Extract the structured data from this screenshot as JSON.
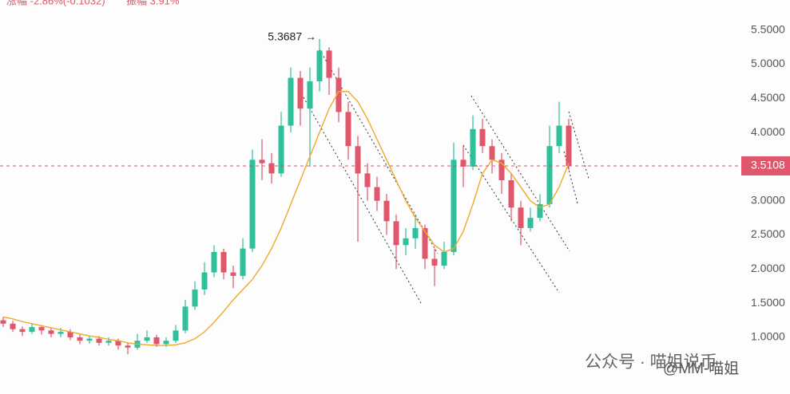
{
  "chart_data": {
    "type": "candlestick",
    "header": {
      "change": "涨幅 -2.86%(-0.1032)",
      "amplitude": "振幅 3.91%"
    },
    "open": [
      1.25,
      1.2,
      1.12,
      1.08,
      1.15,
      1.1,
      1.05,
      1.08,
      1.0,
      0.95,
      0.98,
      0.92,
      0.95,
      0.88,
      0.85,
      0.95,
      1.0,
      0.9,
      0.95,
      1.1,
      1.45,
      1.7,
      1.95,
      2.25,
      1.95,
      1.9,
      2.3,
      3.6,
      3.55,
      3.4,
      4.1,
      4.8,
      4.35,
      4.75,
      5.2,
      4.8,
      4.3,
      3.8,
      3.4,
      3.2,
      3.0,
      2.7,
      2.35,
      2.45,
      2.6,
      2.15,
      2.05,
      2.25,
      3.6,
      3.5,
      4.05,
      3.8,
      3.6,
      3.3,
      2.9,
      2.6,
      2.75,
      2.95,
      3.8,
      4.1
    ],
    "high": [
      1.3,
      1.24,
      1.16,
      1.2,
      1.18,
      1.14,
      1.14,
      1.12,
      1.04,
      1.03,
      1.02,
      1.0,
      0.98,
      0.92,
      1.05,
      1.1,
      1.04,
      1.0,
      1.18,
      1.55,
      1.82,
      2.1,
      2.35,
      2.3,
      2.05,
      2.45,
      3.75,
      3.9,
      3.7,
      4.3,
      4.95,
      4.9,
      4.95,
      5.3687,
      5.25,
      4.95,
      4.45,
      3.95,
      3.55,
      3.35,
      3.1,
      2.8,
      2.6,
      2.8,
      2.65,
      2.3,
      2.4,
      3.85,
      3.8,
      4.25,
      4.2,
      3.9,
      3.7,
      3.4,
      3.0,
      2.9,
      3.1,
      4.1,
      4.45,
      4.2
    ],
    "low": [
      1.15,
      1.08,
      1.02,
      1.05,
      1.04,
      1.0,
      1.0,
      0.96,
      0.9,
      0.91,
      0.88,
      0.88,
      0.82,
      0.75,
      0.82,
      0.92,
      0.86,
      0.86,
      0.92,
      1.06,
      1.4,
      1.62,
      1.88,
      1.85,
      1.72,
      1.85,
      2.25,
      3.3,
      3.25,
      3.35,
      4.0,
      4.1,
      3.5,
      4.6,
      4.55,
      4.15,
      3.6,
      2.4,
      3.0,
      2.85,
      2.5,
      2.0,
      2.2,
      2.3,
      2.0,
      1.75,
      2.0,
      2.2,
      3.2,
      3.45,
      3.7,
      3.4,
      3.1,
      2.7,
      2.35,
      2.55,
      2.7,
      2.9,
      3.7,
      3.45
    ],
    "close": [
      1.2,
      1.12,
      1.08,
      1.15,
      1.1,
      1.05,
      1.08,
      1.0,
      0.95,
      0.98,
      0.92,
      0.95,
      0.88,
      0.85,
      0.95,
      1.0,
      0.9,
      0.95,
      1.1,
      1.45,
      1.7,
      1.95,
      2.25,
      1.95,
      1.9,
      2.3,
      3.6,
      3.55,
      3.4,
      4.1,
      4.8,
      4.35,
      4.75,
      5.2,
      4.8,
      4.3,
      3.8,
      3.4,
      3.2,
      3.0,
      2.7,
      2.35,
      2.45,
      2.6,
      2.15,
      2.05,
      2.25,
      3.6,
      3.5,
      4.05,
      3.8,
      3.6,
      3.3,
      2.9,
      2.6,
      2.75,
      2.95,
      3.8,
      4.1,
      3.51
    ],
    "ma": [
      1.3,
      1.27,
      1.23,
      1.2,
      1.17,
      1.14,
      1.11,
      1.08,
      1.05,
      1.02,
      1.0,
      0.97,
      0.95,
      0.92,
      0.9,
      0.89,
      0.88,
      0.88,
      0.89,
      0.92,
      0.98,
      1.08,
      1.22,
      1.38,
      1.55,
      1.7,
      1.85,
      2.05,
      2.3,
      2.6,
      2.95,
      3.3,
      3.65,
      4.0,
      4.35,
      4.6,
      4.6,
      4.45,
      4.2,
      3.9,
      3.6,
      3.3,
      3.0,
      2.75,
      2.55,
      2.35,
      2.25,
      2.3,
      2.55,
      2.95,
      3.4,
      3.6,
      3.55,
      3.4,
      3.2,
      3.0,
      2.9,
      2.95,
      3.2,
      3.55
    ],
    "up_color": "#2fbf9b",
    "down_color": "#e0566a",
    "ma_color": "#f0a92a",
    "ylim": [
      0.17,
      5.94
    ],
    "yticks": [
      {
        "value": 1.0,
        "label": "1.0000"
      },
      {
        "value": 1.5,
        "label": "1.5000"
      },
      {
        "value": 2.0,
        "label": "2.0000"
      },
      {
        "value": 2.5,
        "label": "2.5000"
      },
      {
        "value": 3.0,
        "label": "3.0000"
      },
      {
        "value": 3.5,
        "label": "3.5000"
      },
      {
        "value": 4.0,
        "label": "4.0000"
      },
      {
        "value": 4.5,
        "label": "4.5000"
      },
      {
        "value": 5.0,
        "label": "5.0000"
      },
      {
        "value": 5.5,
        "label": "5.5000"
      }
    ],
    "last_price": 3.5108,
    "max_label": "5.3687 →",
    "watermark": "公众号 · 喵姐说币",
    "watermark_handle": "@MM-喵姐",
    "grid": false
  }
}
